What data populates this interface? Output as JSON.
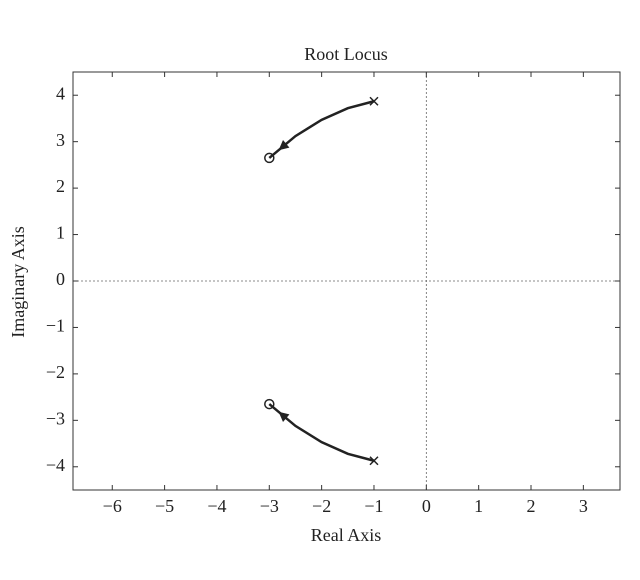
{
  "chart_data": {
    "type": "line",
    "title": "Root Locus",
    "xlabel": "Real Axis",
    "ylabel": "Imaginary Axis",
    "xlim": [
      -6.75,
      3.7
    ],
    "ylim": [
      -4.5,
      4.5
    ],
    "xticks": [
      {
        "value": -6,
        "label": "−6"
      },
      {
        "value": -5,
        "label": "−5"
      },
      {
        "value": -4,
        "label": "−4"
      },
      {
        "value": -3,
        "label": "−3"
      },
      {
        "value": -2,
        "label": "−2"
      },
      {
        "value": -1,
        "label": "−1"
      },
      0,
      1,
      2,
      3
    ],
    "yticks": [
      {
        "value": -4,
        "label": "−4"
      },
      {
        "value": -3,
        "label": "−3"
      },
      {
        "value": -2,
        "label": "−2"
      },
      {
        "value": -1,
        "label": "−1"
      },
      0,
      1,
      2,
      3,
      4
    ],
    "series": [
      {
        "style": "line",
        "color": "#222222",
        "x": [
          -1,
          -1.5,
          -2,
          -2.5,
          -3
        ],
        "values": [
          3.87,
          3.72,
          3.47,
          3.12,
          2.65
        ]
      },
      {
        "style": "line",
        "color": "#222222",
        "x": [
          -1,
          -1.5,
          -2,
          -2.5,
          -3
        ],
        "values": [
          -3.87,
          -3.72,
          -3.47,
          -3.12,
          -2.65
        ]
      },
      {
        "style": "x",
        "color": "#222222",
        "x": [
          -1,
          -1
        ],
        "values": [
          3.87,
          -3.87
        ]
      },
      {
        "style": "o",
        "color": "#222222",
        "x": [
          -3,
          -3
        ],
        "values": [
          2.65,
          -2.65
        ]
      }
    ]
  }
}
